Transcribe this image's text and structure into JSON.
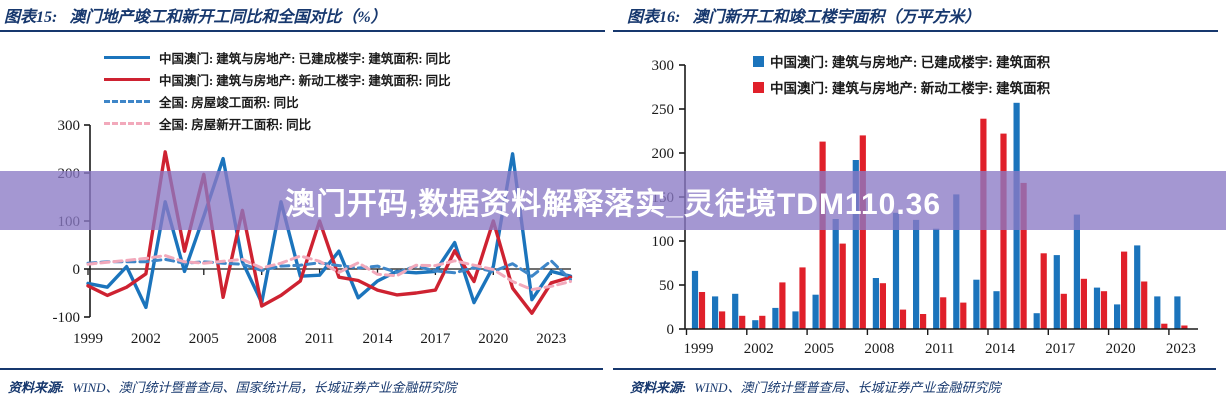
{
  "watermark": {
    "text": "澳门开码,数据资料解释落实_灵徒境TDM110.36",
    "background_color": "#8A7AC5",
    "text_color": "#FFFFFF"
  },
  "colors": {
    "header_navy": "#17386e",
    "macau_blue": "#1B74BC",
    "macau_red": "#CE2231",
    "bar_blue": "#1B74BC",
    "bar_red": "#E0202A",
    "national_blue_dashed": "#3E86C8",
    "national_pink_dashed": "#F2A9BB"
  },
  "figures": {
    "left": {
      "figure_label": "图表15:",
      "title": "澳门地产竣工和新开工同比和全国对比（%）",
      "source_label": "资料来源:",
      "source": "WIND、澳门统计暨普查局、国家统计局，长城证券产业金融研究院",
      "chart_data": {
        "type": "line",
        "grid": false,
        "legend_position": "top-left",
        "x": [
          1999,
          2000,
          2001,
          2002,
          2003,
          2004,
          2005,
          2006,
          2007,
          2008,
          2009,
          2010,
          2011,
          2012,
          2013,
          2014,
          2015,
          2016,
          2017,
          2018,
          2019,
          2020,
          2021,
          2022,
          2023,
          2024
        ],
        "xticks": [
          1999,
          2002,
          2005,
          2008,
          2011,
          2014,
          2017,
          2020,
          2023
        ],
        "ylim": [
          -100,
          300
        ],
        "yticks": [
          -100,
          0,
          100,
          200,
          300
        ],
        "series": [
          {
            "name": "中国澳门: 建筑与房地产: 已建成楼宇: 建筑面积: 同比",
            "style": "solid",
            "color": "#1B74BC",
            "values": [
              -30,
              -38,
              5,
              -80,
              140,
              -5,
              110,
              230,
              15,
              -70,
              140,
              -15,
              -13,
              37,
              -60,
              -25,
              -5,
              -8,
              -5,
              55,
              -70,
              5,
              240,
              -64,
              -5,
              -15
            ]
          },
          {
            "name": "中国澳门: 建筑与房地产: 新动工楼宇: 建筑面积: 同比",
            "style": "solid",
            "color": "#CE2231",
            "values": [
              -35,
              -55,
              -38,
              -10,
              244,
              37,
              197,
              -59,
              122,
              -77,
              -55,
              -25,
              100,
              -17,
              -24,
              -44,
              -54,
              -50,
              -44,
              38,
              -26,
              100,
              -40,
              -92,
              -29,
              -17
            ]
          },
          {
            "name": "全国: 房屋竣工面积: 同比",
            "style": "dashed",
            "color": "#3E86C8",
            "values": [
              12,
              15,
              15,
              15,
              20,
              12,
              15,
              12,
              10,
              -3,
              6,
              8,
              13,
              7,
              2,
              6,
              -7,
              6,
              -4,
              -8,
              3,
              -5,
              11,
              -15,
              17,
              -22
            ]
          },
          {
            "name": "全国: 房屋新开工面积: 同比",
            "style": "dashed",
            "color": "#F2A9BB",
            "values": [
              10,
              14,
              18,
              22,
              28,
              15,
              12,
              16,
              20,
              2,
              12,
              27,
              16,
              -7,
              13,
              -11,
              -14,
              8,
              7,
              17,
              8,
              -1,
              -26,
              -43,
              -36,
              -26
            ]
          }
        ]
      }
    },
    "right": {
      "figure_label": "图表16:",
      "title": "澳门新开工和竣工楼宇面积（万平方米）",
      "source_label": "资料来源:",
      "source": "WIND、澳门统计暨普查局、长城证券产业金融研究院",
      "chart_data": {
        "type": "bar",
        "grid": false,
        "legend_position": "top",
        "categories": [
          1999,
          2000,
          2001,
          2002,
          2003,
          2004,
          2005,
          2006,
          2007,
          2008,
          2009,
          2010,
          2011,
          2012,
          2013,
          2014,
          2015,
          2016,
          2017,
          2018,
          2019,
          2020,
          2021,
          2022,
          2023
        ],
        "xticks": [
          1999,
          2002,
          2005,
          2008,
          2011,
          2014,
          2017,
          2020,
          2023
        ],
        "ylim": [
          0,
          300
        ],
        "yticks": [
          0,
          50,
          100,
          150,
          200,
          250,
          300
        ],
        "series": [
          {
            "name": "中国澳门: 建筑与房地产: 已建成楼宇: 建筑面积",
            "color": "#1B74BC",
            "values": [
              66,
              37,
              40,
              10,
              24,
              20,
              39,
              125,
              192,
              58,
              132,
              124,
              114,
              153,
              56,
              43,
              257,
              18,
              84,
              130,
              47,
              28,
              95,
              37,
              37
            ]
          },
          {
            "name": "中国澳门: 建筑与房地产: 新动工楼宇: 建筑面积",
            "color": "#E0202A",
            "values": [
              42,
              20,
              15,
              15,
              53,
              70,
              213,
              97,
              220,
              52,
              22,
              17,
              36,
              30,
              239,
              222,
              166,
              86,
              40,
              57,
              43,
              88,
              54,
              6,
              4
            ]
          }
        ]
      }
    }
  }
}
